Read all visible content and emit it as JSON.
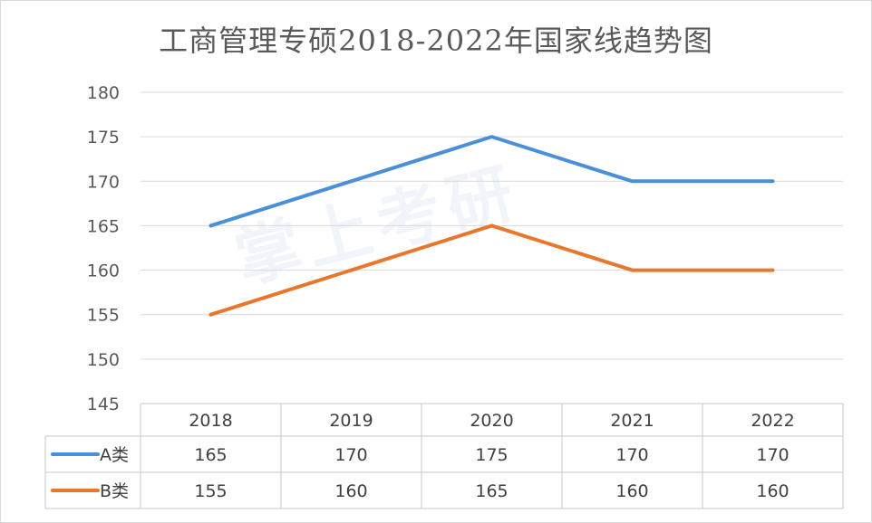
{
  "chart_data": {
    "type": "line",
    "title": "工商管理专硕2018-2022年国家线趋势图",
    "categories": [
      "2018",
      "2019",
      "2020",
      "2021",
      "2022"
    ],
    "series": [
      {
        "name": "A类",
        "values": [
          165,
          170,
          175,
          170,
          170
        ],
        "color": "#4a90d9"
      },
      {
        "name": "B类",
        "values": [
          155,
          160,
          165,
          160,
          160
        ],
        "color": "#e8772e"
      }
    ],
    "ylim": [
      145,
      180
    ],
    "yticks": [
      "180",
      "175",
      "170",
      "165",
      "160",
      "155",
      "150",
      "145"
    ],
    "grid": true,
    "legend": "data-table"
  },
  "watermark": "掌上考研"
}
